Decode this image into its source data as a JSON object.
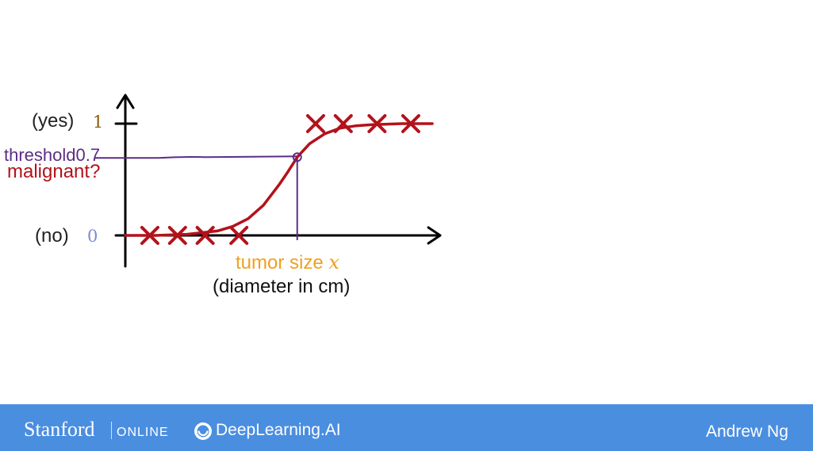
{
  "chart_data": {
    "type": "line",
    "title": "",
    "xlabel": "tumor size",
    "xlabel_variable": "x",
    "xlabel_sub": "(diameter in cm)",
    "ylabel": "malignant?",
    "ylim": [
      0,
      1
    ],
    "y_ticks": [
      {
        "value": 1,
        "prefix": "(yes)",
        "label": "1"
      },
      {
        "value": 0,
        "prefix": "(no)",
        "label": "0"
      }
    ],
    "threshold": {
      "label": "threshold",
      "value": "0.7",
      "y": 0.7,
      "x": 5.6
    },
    "xlim": [
      0,
      10
    ],
    "series": [
      {
        "kind": "sigmoid-curve",
        "color": "#b3121b",
        "x": [
          0,
          1,
          2,
          3,
          3.5,
          4,
          4.5,
          5,
          5.3,
          5.6,
          6,
          6.5,
          7,
          7.5,
          8,
          9,
          10
        ],
        "y": [
          0,
          0,
          0.01,
          0.04,
          0.08,
          0.15,
          0.27,
          0.45,
          0.57,
          0.7,
          0.82,
          0.91,
          0.96,
          0.98,
          0.99,
          1,
          1
        ]
      },
      {
        "kind": "training-examples-malignant-no",
        "marker": "x",
        "color": "#b3121b",
        "x": [
          0.8,
          1.7,
          2.6,
          3.7
        ],
        "y": [
          0,
          0,
          0,
          0
        ]
      },
      {
        "kind": "training-examples-malignant-yes",
        "marker": "x",
        "color": "#b3121b",
        "x": [
          6.2,
          7.1,
          8.2,
          9.3
        ],
        "y": [
          1,
          1,
          1,
          1
        ]
      }
    ],
    "colors": {
      "axis": "#000000",
      "curve": "#b3121b",
      "threshold": "#5b2d86"
    }
  },
  "footer": {
    "brand_stanford": "Stanford",
    "brand_online": "ONLINE",
    "brand_deeplearning": "DeepLearning.AI",
    "author": "Andrew Ng",
    "background_color": "#4a8ee0"
  }
}
